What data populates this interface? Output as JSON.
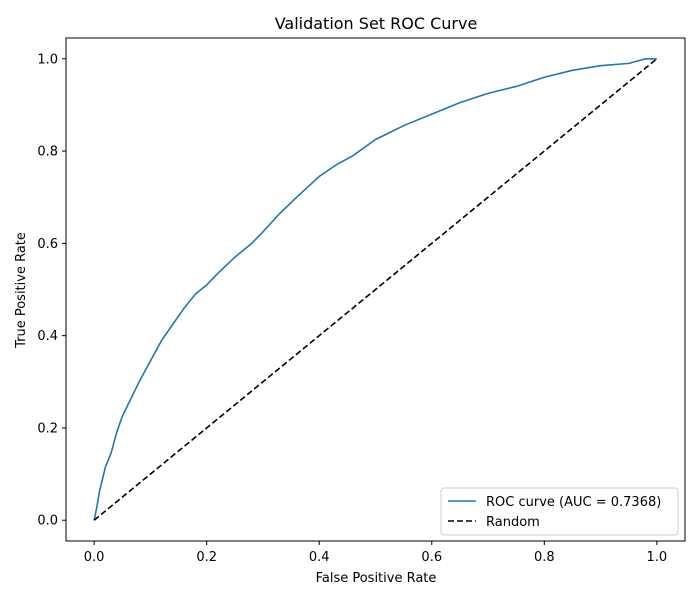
{
  "chart_data": {
    "type": "line",
    "title": "Validation Set ROC Curve",
    "xlabel": "False Positive Rate",
    "ylabel": "True Positive Rate",
    "xlim": [
      -0.05,
      1.05
    ],
    "ylim": [
      -0.045,
      1.045
    ],
    "xticks": [
      0.0,
      0.2,
      0.4,
      0.6,
      0.8,
      1.0
    ],
    "yticks": [
      0.0,
      0.2,
      0.4,
      0.6,
      0.8,
      1.0
    ],
    "xtick_labels": [
      "0.0",
      "0.2",
      "0.4",
      "0.6",
      "0.8",
      "1.0"
    ],
    "ytick_labels": [
      "0.0",
      "0.2",
      "0.4",
      "0.6",
      "0.8",
      "1.0"
    ],
    "grid": false,
    "legend_position": "lower-right",
    "series": [
      {
        "name": "ROC curve (AUC = 0.7368)",
        "style": "solid",
        "color": "#1f77b4",
        "x": [
          0.0,
          0.005,
          0.01,
          0.015,
          0.02,
          0.03,
          0.04,
          0.05,
          0.06,
          0.08,
          0.1,
          0.12,
          0.14,
          0.16,
          0.18,
          0.2,
          0.22,
          0.25,
          0.28,
          0.3,
          0.33,
          0.36,
          0.4,
          0.43,
          0.46,
          0.5,
          0.55,
          0.6,
          0.65,
          0.7,
          0.75,
          0.8,
          0.85,
          0.9,
          0.95,
          0.98,
          1.0
        ],
        "y": [
          0.0,
          0.03,
          0.065,
          0.09,
          0.115,
          0.145,
          0.19,
          0.225,
          0.25,
          0.3,
          0.345,
          0.39,
          0.425,
          0.46,
          0.49,
          0.51,
          0.535,
          0.57,
          0.6,
          0.625,
          0.665,
          0.7,
          0.745,
          0.77,
          0.79,
          0.825,
          0.855,
          0.88,
          0.905,
          0.925,
          0.94,
          0.96,
          0.975,
          0.985,
          0.99,
          1.0,
          1.0
        ]
      },
      {
        "name": "Random",
        "style": "dashed",
        "color": "#000000",
        "x": [
          0.0,
          1.0
        ],
        "y": [
          0.0,
          1.0
        ]
      }
    ]
  }
}
